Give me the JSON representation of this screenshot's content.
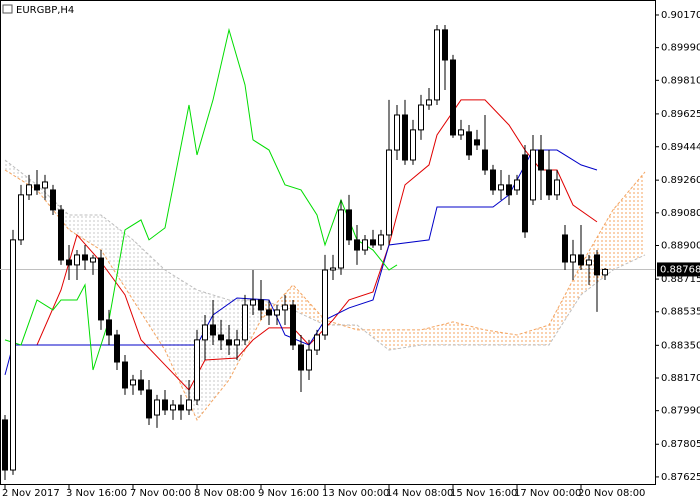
{
  "chart_data": {
    "type": "candlestick",
    "title": "EURGBP,H4",
    "open": [
      0.87939,
      0.87663,
      0.88931,
      0.89179,
      0.89234,
      0.89217,
      0.89206,
      0.89096,
      0.8882,
      0.88793,
      0.88848,
      0.88809,
      0.88831,
      0.8849,
      0.88407,
      0.88258,
      0.88132,
      0.88159,
      0.88104,
      0.87966,
      0.88049,
      0.87994,
      0.88021,
      0.87994,
      0.88049,
      0.8838,
      0.88462,
      0.88407,
      0.8838,
      0.88352,
      0.8838,
      0.88572,
      0.886,
      0.88545,
      0.88517,
      0.88545,
      0.88572,
      0.88352,
      0.88214,
      0.88324,
      0.88407,
      0.88765,
      0.88776,
      0.89096,
      0.88931,
      0.88875,
      0.88931,
      0.88903,
      0.88958,
      0.89426,
      0.89619,
      0.89371,
      0.89537,
      0.89674,
      0.89702,
      0.90088,
      0.89922,
      0.89509,
      0.89526,
      0.89482,
      0.89426,
      0.89316,
      0.89206,
      0.89234,
      0.89206,
      0.89399,
      0.89151,
      0.89426,
      0.89316,
      0.89179,
      0.88958,
      0.88809,
      0.88848,
      0.88793,
      0.88848,
      0.88738
    ],
    "high": [
      0.87966,
      0.88986,
      0.89234,
      0.89289,
      0.89316,
      0.89289,
      0.89234,
      0.89123,
      0.88903,
      0.88875,
      0.88903,
      0.88848,
      0.88875,
      0.88545,
      0.88435,
      0.88297,
      0.88187,
      0.88214,
      0.88159,
      0.88077,
      0.88104,
      0.88049,
      0.88077,
      0.88159,
      0.88435,
      0.88517,
      0.886,
      0.8849,
      0.88462,
      0.88435,
      0.88628,
      0.88765,
      0.8871,
      0.886,
      0.88572,
      0.88628,
      0.886,
      0.88407,
      0.8838,
      0.88435,
      0.88848,
      0.88848,
      0.89151,
      0.89179,
      0.89013,
      0.88958,
      0.88986,
      0.88986,
      0.89702,
      0.89674,
      0.89702,
      0.89592,
      0.8973,
      0.89768,
      0.90115,
      0.90115,
      0.8995,
      0.89592,
      0.89564,
      0.89537,
      0.89619,
      0.89344,
      0.89316,
      0.89289,
      0.89289,
      0.89454,
      0.89509,
      0.89509,
      0.89426,
      0.89316,
      0.89013,
      0.88931,
      0.89013,
      0.88848,
      0.88875,
      0.88776
    ],
    "low": [
      0.87608,
      0.87636,
      0.88903,
      0.89151,
      0.89179,
      0.89151,
      0.89068,
      0.88793,
      0.8871,
      0.8871,
      0.88765,
      0.88738,
      0.88435,
      0.88352,
      0.88214,
      0.88077,
      0.88077,
      0.88077,
      0.87911,
      0.87895,
      0.87966,
      0.87939,
      0.87939,
      0.87966,
      0.88021,
      0.88269,
      0.88352,
      0.88324,
      0.88297,
      0.88269,
      0.88352,
      0.88517,
      0.8849,
      0.88462,
      0.88462,
      0.88462,
      0.88324,
      0.88093,
      0.88159,
      0.88297,
      0.8838,
      0.8871,
      0.88738,
      0.88903,
      0.88793,
      0.88848,
      0.88887,
      0.88875,
      0.88903,
      0.89371,
      0.89344,
      0.89344,
      0.89482,
      0.89647,
      0.89674,
      0.89757,
      0.89493,
      0.89482,
      0.89371,
      0.89426,
      0.89289,
      0.89179,
      0.89151,
      0.89123,
      0.89179,
      0.88942,
      0.89123,
      0.89151,
      0.89151,
      0.89151,
      0.88765,
      0.8871,
      0.88765,
      0.88683,
      0.88534,
      0.8871
    ],
    "close": [
      0.87663,
      0.88931,
      0.89179,
      0.89234,
      0.89206,
      0.8925,
      0.89096,
      0.8882,
      0.88793,
      0.88848,
      0.8882,
      0.88831,
      0.8849,
      0.88407,
      0.88258,
      0.88115,
      0.88159,
      0.88104,
      0.8795,
      0.88049,
      0.87994,
      0.88021,
      0.87994,
      0.88049,
      0.8838,
      0.88462,
      0.88407,
      0.8838,
      0.88352,
      0.8838,
      0.88572,
      0.886,
      0.88545,
      0.88517,
      0.88545,
      0.88572,
      0.88352,
      0.88214,
      0.88324,
      0.88407,
      0.88765,
      0.88776,
      0.89096,
      0.88931,
      0.88875,
      0.88931,
      0.88903,
      0.88958,
      0.89426,
      0.89619,
      0.89371,
      0.89537,
      0.89674,
      0.89702,
      0.90088,
      0.89922,
      0.89509,
      0.89537,
      0.89399,
      0.89454,
      0.89316,
      0.89206,
      0.89234,
      0.89179,
      0.89261,
      0.88975,
      0.89426,
      0.89316,
      0.89179,
      0.89261,
      0.88809,
      0.88848,
      0.88793,
      0.8882,
      0.88738,
      0.88768
    ],
    "up_color": "#ffffff",
    "down_color": "#000000",
    "lines": [
      {
        "color": "#e00000",
        "x": [
          2,
          4,
          7,
          9,
          12,
          15,
          17,
          20,
          23,
          25,
          29,
          31,
          33,
          36,
          38,
          41,
          43,
          46,
          48,
          50,
          53,
          54,
          57,
          60,
          63,
          65,
          67,
          69,
          71,
          74
        ],
        "values": [
          0.88352,
          0.88352,
          0.88655,
          0.88958,
          0.88809,
          0.88628,
          0.8838,
          0.88242,
          0.88104,
          0.88269,
          0.8828,
          0.8838,
          0.88446,
          0.88446,
          0.88352,
          0.8849,
          0.886,
          0.88644,
          0.88903,
          0.89234,
          0.89344,
          0.89509,
          0.89702,
          0.89702,
          0.89564,
          0.89426,
          0.89316,
          0.89316,
          0.89123,
          0.8903
        ]
      },
      {
        "color": "#0000c8",
        "x": [
          0,
          1,
          24,
          26,
          29,
          33,
          35,
          38,
          40,
          43,
          46,
          48,
          53,
          54,
          61,
          63,
          66,
          69,
          72,
          74
        ],
        "values": [
          0.88187,
          0.88352,
          0.88352,
          0.88517,
          0.88611,
          0.886,
          0.88407,
          0.88352,
          0.8849,
          0.88556,
          0.886,
          0.88903,
          0.88931,
          0.89112,
          0.89112,
          0.89179,
          0.89426,
          0.89426,
          0.89344,
          0.89316
        ]
      },
      {
        "color": "#00dd00",
        "x": [
          0,
          2,
          4,
          6,
          7,
          9,
          10,
          11,
          13,
          15,
          17,
          18,
          20,
          23,
          24,
          26,
          28,
          30,
          31,
          33,
          35,
          37,
          39,
          40,
          42,
          44,
          46,
          48,
          49
        ],
        "values": [
          0.8838,
          0.88352,
          0.886,
          0.88545,
          0.886,
          0.886,
          0.88683,
          0.88214,
          0.8849,
          0.88986,
          0.89041,
          0.88931,
          0.88997,
          0.89674,
          0.89399,
          0.89702,
          0.90088,
          0.89785,
          0.89482,
          0.89426,
          0.89234,
          0.89206,
          0.89068,
          0.88903,
          0.89151,
          0.88931,
          0.88875,
          0.88765,
          0.88793
        ]
      }
    ],
    "cloud": {
      "x": [
        0,
        4,
        8,
        12,
        16,
        20,
        24,
        28,
        32,
        36,
        40,
        44,
        48,
        52,
        56,
        60,
        64,
        68,
        72,
        76,
        80
      ],
      "span_a": [
        0.89316,
        0.89206,
        0.88986,
        0.88875,
        0.886,
        0.88324,
        0.87939,
        0.88159,
        0.8849,
        0.88683,
        0.8849,
        0.88435,
        0.88435,
        0.88435,
        0.88479,
        0.88435,
        0.88407,
        0.88462,
        0.88793,
        0.89096,
        0.89305
      ],
      "span_b": [
        0.89371,
        0.89234,
        0.89068,
        0.89068,
        0.88931,
        0.88765,
        0.88655,
        0.886,
        0.886,
        0.88545,
        0.88462,
        0.88462,
        0.88324,
        0.88352,
        0.88352,
        0.88352,
        0.88352,
        0.88352,
        0.88628,
        0.88765,
        0.88848
      ],
      "color_a": "#f4a460",
      "color_b": "#bebebe"
    },
    "last_price": {
      "value": 0.88768,
      "label": "0.88768"
    },
    "xlim": [
      -0.625,
      81.25
    ],
    "xticks": [
      {
        "value": 0,
        "label": "2 Nov 2017"
      },
      {
        "value": 8,
        "label": "3 Nov 16:00"
      },
      {
        "value": 16,
        "label": "7 Nov 00:00"
      },
      {
        "value": 24,
        "label": "8 Nov 08:00"
      },
      {
        "value": 32,
        "label": "9 Nov 16:00"
      },
      {
        "value": 40,
        "label": "13 Nov 00:00"
      },
      {
        "value": 48,
        "label": "14 Nov 08:00"
      },
      {
        "value": 56,
        "label": "15 Nov 16:00"
      },
      {
        "value": 64,
        "label": "17 Nov 00:00"
      },
      {
        "value": 72,
        "label": "20 Nov 08:00"
      }
    ],
    "ylim": [
      0.87586,
      0.90236
    ],
    "yticks": [
      {
        "value": 0.9017,
        "label": "0.90170"
      },
      {
        "value": 0.8999,
        "label": "0.89990"
      },
      {
        "value": 0.8981,
        "label": "0.89810"
      },
      {
        "value": 0.89625,
        "label": "0.89625"
      },
      {
        "value": 0.89444,
        "label": "0.89444"
      },
      {
        "value": 0.8926,
        "label": "0.89260"
      },
      {
        "value": 0.8908,
        "label": "0.89080"
      },
      {
        "value": 0.889,
        "label": "0.88900"
      },
      {
        "value": 0.88715,
        "label": "0.88715"
      },
      {
        "value": 0.88535,
        "label": "0.88535"
      },
      {
        "value": 0.8835,
        "label": "0.88350"
      },
      {
        "value": 0.8817,
        "label": "0.88170"
      },
      {
        "value": 0.8799,
        "label": "0.87990"
      },
      {
        "value": 0.87805,
        "label": "0.87805"
      },
      {
        "value": 0.87625,
        "label": "0.87625"
      }
    ]
  }
}
